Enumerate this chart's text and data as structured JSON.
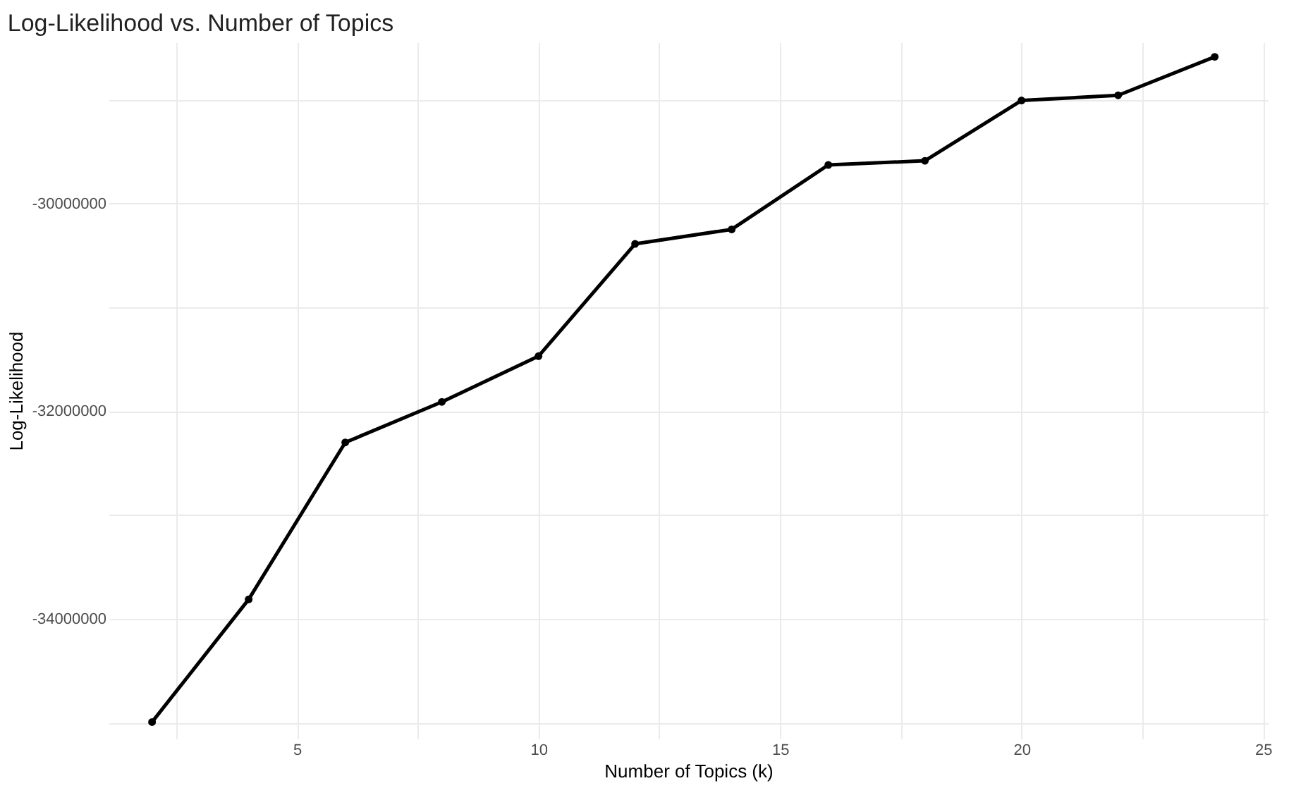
{
  "chart_data": {
    "type": "line",
    "title": "Log-Likelihood vs. Number of Topics",
    "xlabel": "Number of Topics (k)",
    "ylabel": "Log-Likelihood",
    "x": [
      2,
      4,
      6,
      8,
      10,
      12,
      14,
      16,
      18,
      20,
      22,
      24
    ],
    "series": [
      {
        "color": "#000000",
        "values": [
          -34990000,
          -33810000,
          -32300000,
          -31910000,
          -31470000,
          -30390000,
          -30250000,
          -29630000,
          -29590000,
          -29010000,
          -28960000,
          -28590000
        ]
      }
    ],
    "xlim": [
      1.1,
      25.1
    ],
    "ylim": [
      -35150000,
      -28450000
    ],
    "xticks": [
      {
        "value": 2.5,
        "label": null
      },
      5,
      {
        "value": 7.5,
        "label": null
      },
      10,
      {
        "value": 12.5,
        "label": null
      },
      15,
      {
        "value": 17.5,
        "label": null
      },
      20,
      {
        "value": 22.5,
        "label": null
      },
      25
    ],
    "yticks": [
      {
        "value": -35000000,
        "label": null
      },
      -34000000,
      {
        "value": -33000000,
        "label": null
      },
      -32000000,
      {
        "value": -31000000,
        "label": null
      },
      -30000000,
      {
        "value": -29000000,
        "label": null
      }
    ],
    "grid": true,
    "marker": "circle",
    "line_style": "solid",
    "legend": false
  }
}
